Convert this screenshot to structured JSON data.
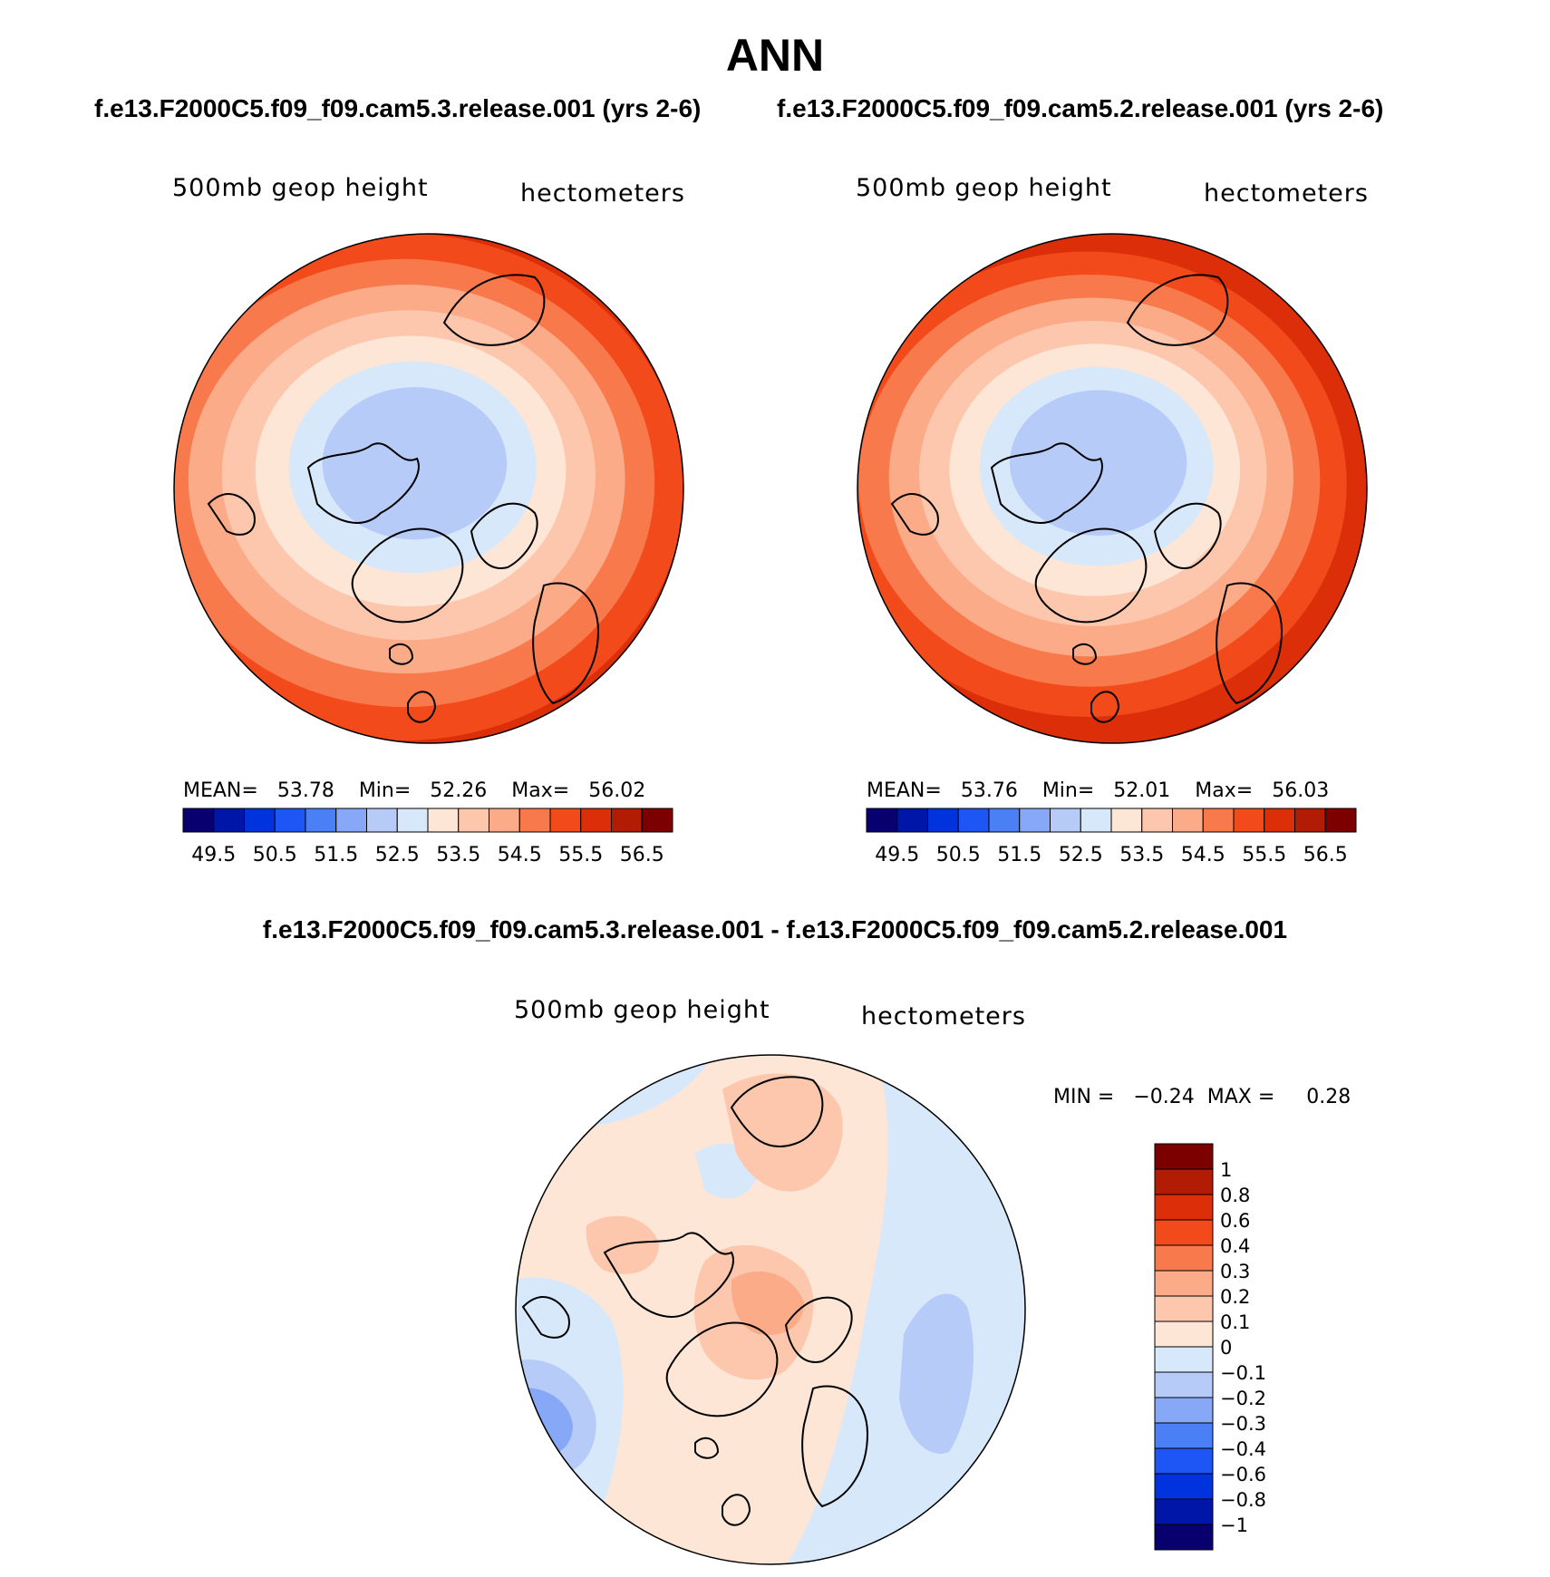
{
  "figure": {
    "title": "ANN",
    "case1_title": "f.e13.F2000C5.f09_f09.cam5.3.release.001 (yrs 2-6)",
    "case2_title": "f.e13.F2000C5.f09_f09.cam5.2.release.001 (yrs 2-6)",
    "diff_title": "f.e13.F2000C5.f09_f09.cam5.3.release.001 - f.e13.F2000C5.f09_f09.cam5.2.release.001"
  },
  "panels": [
    {
      "variable": "500mb  geop  height",
      "units": "hectometers",
      "mean_label": "MEAN=",
      "mean": "53.78",
      "min_label": "Min=",
      "min": "52.26",
      "max_label": "Max=",
      "max": "56.02"
    },
    {
      "variable": "500mb  geop  height",
      "units": "hectometers",
      "mean_label": "MEAN=",
      "mean": "53.76",
      "min_label": "Min=",
      "min": "52.01",
      "max_label": "Max=",
      "max": "56.03"
    }
  ],
  "diff_panel": {
    "variable": "500mb  geop  height",
    "units": "hectometers",
    "minmax_text": "MIN =   −0.24  MAX =     0.28"
  },
  "colorbar_main": {
    "colors": [
      "#08006e",
      "#0016a8",
      "#0033dd",
      "#1e55f5",
      "#4b7ff5",
      "#87a8f7",
      "#b7cbf9",
      "#d8e8fb",
      "#fde6d5",
      "#fcc7ad",
      "#fbab88",
      "#f8794b",
      "#f24a1b",
      "#dc2e08",
      "#b21b04",
      "#7d0000"
    ],
    "labels": [
      "49.5",
      "50.5",
      "51.5",
      "52.5",
      "53.5",
      "54.5",
      "55.5",
      "56.5"
    ]
  },
  "colorbar_diff": {
    "colors": [
      "#7d0000",
      "#b21b04",
      "#dc2e08",
      "#f24a1b",
      "#f8794b",
      "#fbab88",
      "#fcc7ad",
      "#fde6d5",
      "#d8e8fb",
      "#b7cbf9",
      "#87a8f7",
      "#4b7ff5",
      "#1e55f5",
      "#0033dd",
      "#0016a8",
      "#08006e"
    ],
    "labels": [
      "1",
      "0.8",
      "0.6",
      "0.4",
      "0.3",
      "0.2",
      "0.1",
      "0",
      "−0.1",
      "−0.2",
      "−0.3",
      "−0.4",
      "−0.6",
      "−0.8",
      "−1"
    ]
  },
  "map_fields": {
    "panel1": {
      "ring_colors": [
        "#dc2e08",
        "#f24a1b",
        "#f8794b",
        "#fbab88",
        "#fcc7ad",
        "#fde6d5",
        "#d8e8fb",
        "#b7cbf9"
      ]
    },
    "panel2": {
      "ring_colors": [
        "#b21b04",
        "#dc2e08",
        "#f24a1b",
        "#f8794b",
        "#fbab88",
        "#fcc7ad",
        "#fde6d5",
        "#d8e8fb",
        "#b7cbf9"
      ]
    },
    "diff": {
      "background": "#fde6d5",
      "negative_light": "#d8e8fb",
      "negative_mid": "#b7cbf9",
      "negative_strong": "#87a8f7",
      "positive_mid": "#fcc7ad",
      "positive_strong": "#fbab88"
    }
  }
}
